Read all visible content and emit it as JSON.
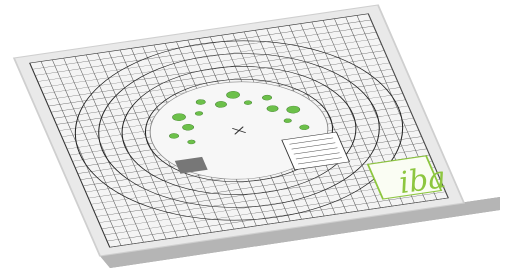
{
  "logo": {
    "text": "iba"
  }
}
